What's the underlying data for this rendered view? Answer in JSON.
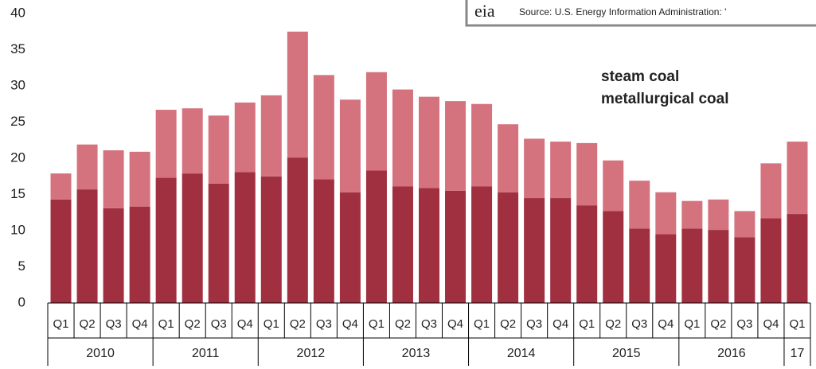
{
  "chart_data": {
    "type": "stacked_bar",
    "source": "Source: U.S. Energy Information Administration: '",
    "logo": "eia",
    "categories": [
      "Q1",
      "Q2",
      "Q3",
      "Q4",
      "Q1",
      "Q2",
      "Q3",
      "Q4",
      "Q1",
      "Q2",
      "Q3",
      "Q4",
      "Q1",
      "Q2",
      "Q3",
      "Q4",
      "Q1",
      "Q2",
      "Q3",
      "Q4",
      "Q1",
      "Q2",
      "Q3",
      "Q4",
      "Q1",
      "Q2",
      "Q3",
      "Q4",
      "Q1"
    ],
    "groups": [
      "2010",
      "2011",
      "2012",
      "2013",
      "2014",
      "2015",
      "2016",
      "17"
    ],
    "series": [
      {
        "name": "metallurgical coal",
        "color": "#a0303f",
        "values": [
          14.3,
          15.7,
          13.1,
          13.3,
          17.3,
          17.9,
          16.5,
          18.1,
          17.5,
          20.1,
          17.1,
          15.3,
          18.3,
          16.1,
          15.9,
          15.5,
          16.1,
          15.3,
          14.5,
          14.5,
          13.5,
          12.7,
          10.3,
          9.5,
          10.3,
          10.1,
          9.1,
          11.7,
          12.3
        ]
      },
      {
        "name": "steam coal",
        "color": "#d4737e",
        "values": [
          3.6,
          6.2,
          8.0,
          7.6,
          9.4,
          9.0,
          9.4,
          9.6,
          11.2,
          17.4,
          14.4,
          12.8,
          13.6,
          13.4,
          12.6,
          12.4,
          11.4,
          9.4,
          8.2,
          7.8,
          8.6,
          7.0,
          6.6,
          5.8,
          3.8,
          4.2,
          3.6,
          7.6,
          10.0
        ]
      }
    ],
    "ylim": [
      0,
      40
    ],
    "yticks": [
      0,
      5,
      10,
      15,
      20,
      25,
      30,
      35,
      40
    ],
    "grid": false
  }
}
